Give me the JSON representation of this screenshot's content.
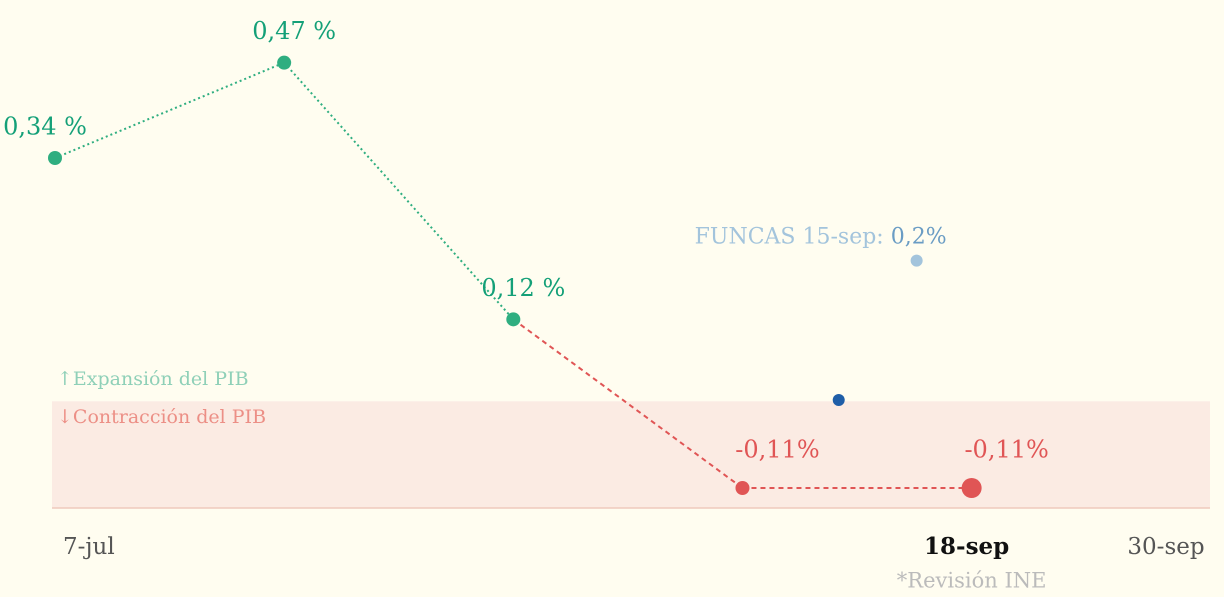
{
  "chart_data": {
    "type": "line",
    "x": [
      0,
      1,
      2,
      3,
      4
    ],
    "series": [
      {
        "name": "PIB",
        "values": [
          0.34,
          0.47,
          0.12,
          -0.11,
          -0.11
        ],
        "value_labels": [
          "0,34 %",
          "0,47 %",
          "0,12 %",
          "-0,11%",
          "-0,11%"
        ],
        "color": "#2fae80",
        "negative_color": "#e05555"
      }
    ],
    "xlim": [
      0,
      4.87
    ],
    "ylim": [
      -0.14,
      0.55
    ],
    "xticks": [
      {
        "value": 0,
        "label": "7-jul"
      },
      {
        "value": 4,
        "label": "18-sep"
      },
      {
        "value": 4.87,
        "label": "30-sep"
      }
    ],
    "highlight_tick": 1,
    "tick_note": "*Revisión INE",
    "zone_labels": {
      "positive": "↑Expansión del PIB",
      "negative": "↓Contracción del PIB"
    },
    "annotations": [
      {
        "x": 3.76,
        "y": 0.2,
        "text": "FUNCAS 15-sep: ",
        "value_label": "0,2%",
        "color": "#a3c4dc"
      },
      {
        "x": 3.42,
        "y": 0.01,
        "color": "#1f5ea8"
      }
    ]
  }
}
